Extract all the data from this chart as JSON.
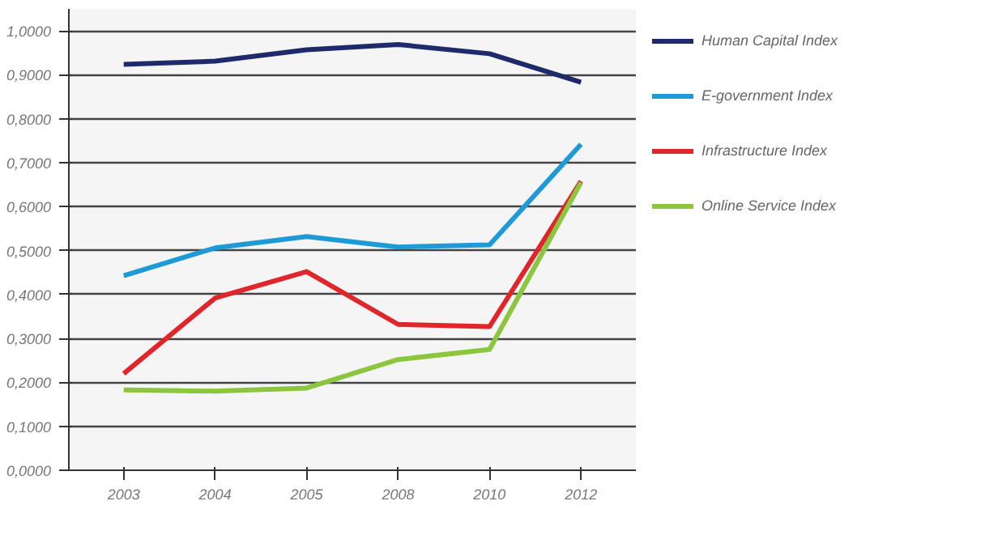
{
  "chart_data": {
    "type": "line",
    "categories": [
      "2003",
      "2004",
      "2005",
      "2008",
      "2010",
      "2012"
    ],
    "series": [
      {
        "name": "Human Capital Index",
        "color": "#1f2a6b",
        "values": [
          0.924,
          0.931,
          0.957,
          0.969,
          0.948,
          0.883
        ]
      },
      {
        "name": "E-government Index",
        "color": "#1e9ad6",
        "values": [
          0.443,
          0.506,
          0.532,
          0.508,
          0.513,
          0.742
        ]
      },
      {
        "name": "Infrastructure Index",
        "color": "#e0262a",
        "values": [
          0.22,
          0.392,
          0.452,
          0.332,
          0.327,
          0.658
        ]
      },
      {
        "name": "Online Service Index",
        "color": "#8cc63f",
        "values": [
          0.183,
          0.18,
          0.187,
          0.252,
          0.275,
          0.655
        ]
      }
    ],
    "ylim": [
      0,
      1.05
    ],
    "yticks": [
      {
        "value": 0,
        "label": "0,0000"
      },
      {
        "value": 0.1,
        "label": "0,1000"
      },
      {
        "value": 0.2,
        "label": "0,2000"
      },
      {
        "value": 0.3,
        "label": "0,3000"
      },
      {
        "value": 0.4,
        "label": "0,4000"
      },
      {
        "value": 0.5,
        "label": "0,5000"
      },
      {
        "value": 0.6,
        "label": "0,6000"
      },
      {
        "value": 0.7,
        "label": "0,7000"
      },
      {
        "value": 0.8,
        "label": "0,8000"
      },
      {
        "value": 0.9,
        "label": "0,9000"
      },
      {
        "value": 1,
        "label": "1,0000"
      }
    ],
    "grid": "y",
    "legend": "top right",
    "line_style": "solid",
    "marker": "none"
  }
}
